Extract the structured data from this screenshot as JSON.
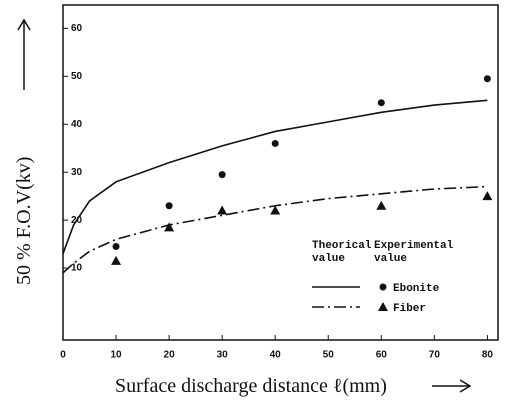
{
  "chart_data": {
    "type": "scatter_with_curves",
    "xlabel": "Surface discharge distance ℓ(mm)",
    "ylabel": "50 % F.O.V(kv)",
    "xlim": [
      0,
      82
    ],
    "ylim": [
      -5,
      63
    ],
    "xticks": [
      0,
      10,
      20,
      30,
      40,
      50,
      60,
      70,
      80
    ],
    "yticks": [
      10,
      20,
      30,
      40,
      50,
      60
    ],
    "legend_titles": [
      [
        "Theorical",
        "value"
      ],
      [
        "Experimental",
        "value"
      ]
    ],
    "series": [
      {
        "name": "Ebonite",
        "color": "#111111",
        "marker": "circle",
        "line": "solid",
        "theory": {
          "x": [
            0,
            2,
            5,
            10,
            20,
            30,
            40,
            50,
            60,
            70,
            80
          ],
          "values": [
            13,
            19,
            24,
            28,
            32,
            35.5,
            38.5,
            40.5,
            42.5,
            44,
            45
          ]
        },
        "experiment": {
          "x": [
            10,
            20,
            30,
            40,
            60,
            80
          ],
          "values": [
            14.5,
            23,
            29.5,
            36,
            44.5,
            49.5
          ]
        }
      },
      {
        "name": "Fiber",
        "color": "#111111",
        "marker": "triangle",
        "line": "dashdot",
        "theory": {
          "x": [
            0,
            2,
            5,
            10,
            20,
            30,
            40,
            50,
            60,
            70,
            80
          ],
          "values": [
            9,
            11,
            13.5,
            16,
            19,
            21,
            23,
            24.5,
            25.5,
            26.5,
            27
          ]
        },
        "experiment": {
          "x": [
            10,
            20,
            30,
            40,
            60,
            80
          ],
          "values": [
            11.5,
            18.5,
            22,
            22,
            23,
            25
          ]
        }
      }
    ]
  }
}
